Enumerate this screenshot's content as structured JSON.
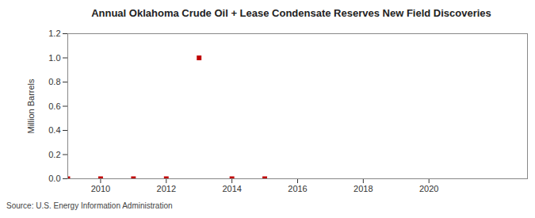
{
  "chart_data": {
    "type": "scatter",
    "title": "Annual Oklahoma Crude Oil + Lease Condensate Reserves New Field Discoveries",
    "y_label": "Million Barrels",
    "source": "Source: U.S. Energy Information Administration",
    "x": [
      2009,
      2010,
      2011,
      2012,
      2013,
      2014,
      2015
    ],
    "values": [
      0,
      0,
      0,
      0,
      1.0,
      0,
      0
    ],
    "color": "#c00000",
    "marker": "square",
    "xlim": [
      2009,
      2023
    ],
    "xticks": [
      2010,
      2012,
      2014,
      2016,
      2018,
      2020
    ],
    "ylim": [
      0,
      1.2
    ],
    "yticks": [
      {
        "value": 0,
        "label": "0.0"
      },
      0.2,
      0.4,
      0.6,
      0.8,
      {
        "value": 1.0,
        "label": "1.0"
      },
      1.2
    ],
    "grid": false
  }
}
